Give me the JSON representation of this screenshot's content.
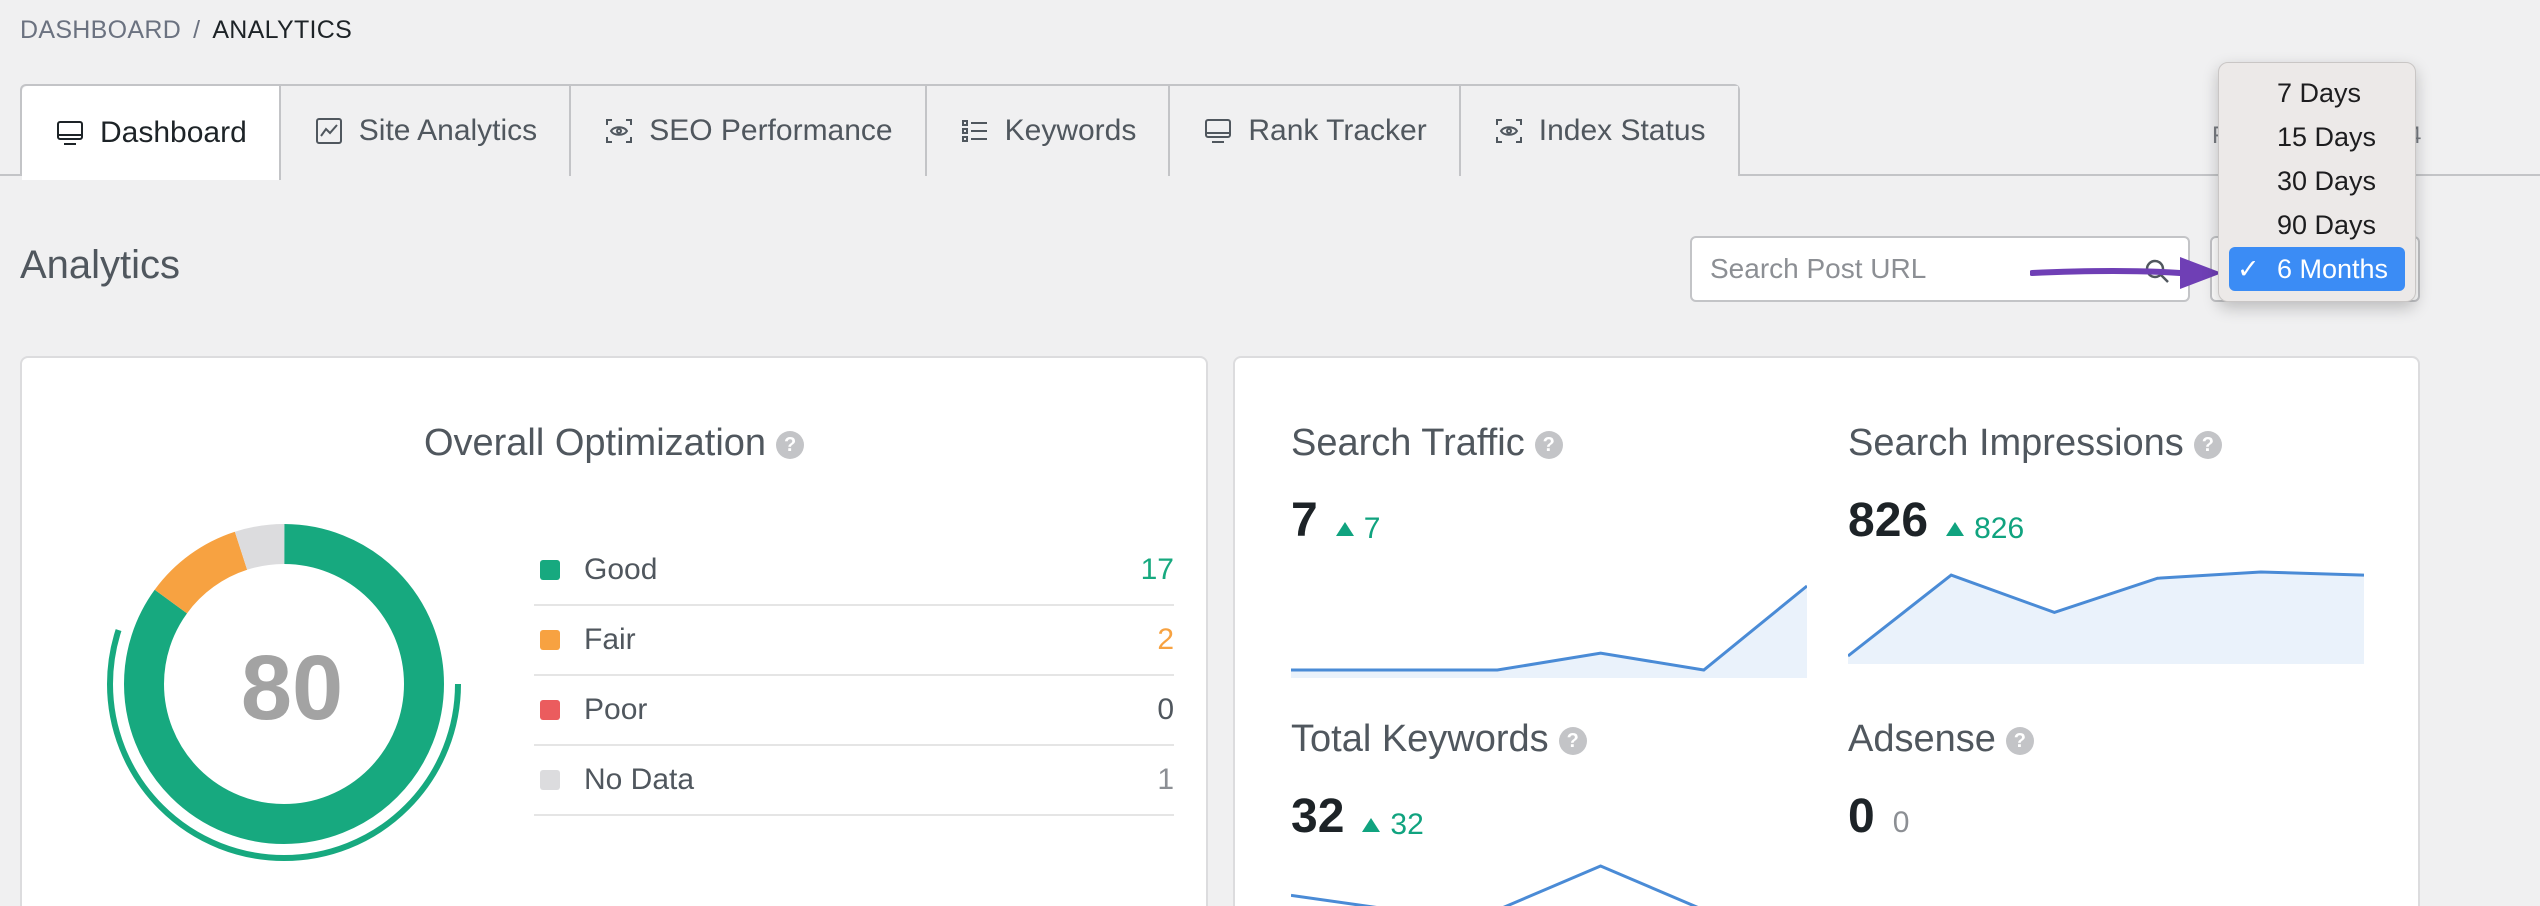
{
  "breadcrumb": {
    "parent": "DASHBOARD",
    "separator": "/",
    "current": "ANALYTICS"
  },
  "tabs": [
    {
      "label": "Dashboard",
      "icon": "monitor-icon",
      "active": true
    },
    {
      "label": "Site Analytics",
      "icon": "line-chart-icon",
      "active": false
    },
    {
      "label": "SEO Performance",
      "icon": "eye-scan-icon",
      "active": false
    },
    {
      "label": "Keywords",
      "icon": "list-icon",
      "active": false
    },
    {
      "label": "Rank Tracker",
      "icon": "monitor-icon",
      "active": false
    },
    {
      "label": "Index Status",
      "icon": "eye-scan-icon",
      "active": false
    }
  ],
  "section_title": "Analytics",
  "search": {
    "placeholder": "Search Post URL",
    "value": ""
  },
  "range_dropdown": {
    "options": [
      "7 Days",
      "15 Days",
      "30 Days",
      "90 Days",
      "6 Months"
    ],
    "selected": "6 Months",
    "check": "✓"
  },
  "partial_under_dropdown": {
    "left": "F",
    "right": "4"
  },
  "colors": {
    "good": "#17a97f",
    "fair": "#f7a241",
    "poor": "#eb5c5e",
    "no_data": "#dcdcde",
    "accent_arrow": "#6f3fb5",
    "spark_line": "#4a8bd6"
  },
  "overall_optimization": {
    "title": "Overall Optimization",
    "score": "80",
    "score_fraction": 0.8,
    "legend": [
      {
        "label": "Good",
        "count": "17",
        "color": "#17a97f",
        "count_color": "#17a97f"
      },
      {
        "label": "Fair",
        "count": "2",
        "color": "#f7a241",
        "count_color": "#f7a241"
      },
      {
        "label": "Poor",
        "count": "0",
        "color": "#eb5c5e",
        "count_color": "#50575e"
      },
      {
        "label": "No Data",
        "count": "1",
        "color": "#dcdcde",
        "count_color": "#8c8f94"
      }
    ]
  },
  "metrics": {
    "search_traffic": {
      "title": "Search Traffic",
      "value": "7",
      "delta": "7",
      "trend": [
        0,
        0,
        0,
        1,
        0,
        5
      ]
    },
    "search_impressions": {
      "title": "Search Impressions",
      "value": "826",
      "delta": "826",
      "trend": [
        50,
        180,
        120,
        175,
        185,
        180
      ]
    },
    "total_keywords": {
      "title": "Total Keywords",
      "value": "32",
      "delta": "32",
      "trend": [
        10,
        0,
        0,
        30,
        0,
        0
      ]
    },
    "adsense": {
      "title": "Adsense",
      "value": "0",
      "delta": "0"
    }
  }
}
